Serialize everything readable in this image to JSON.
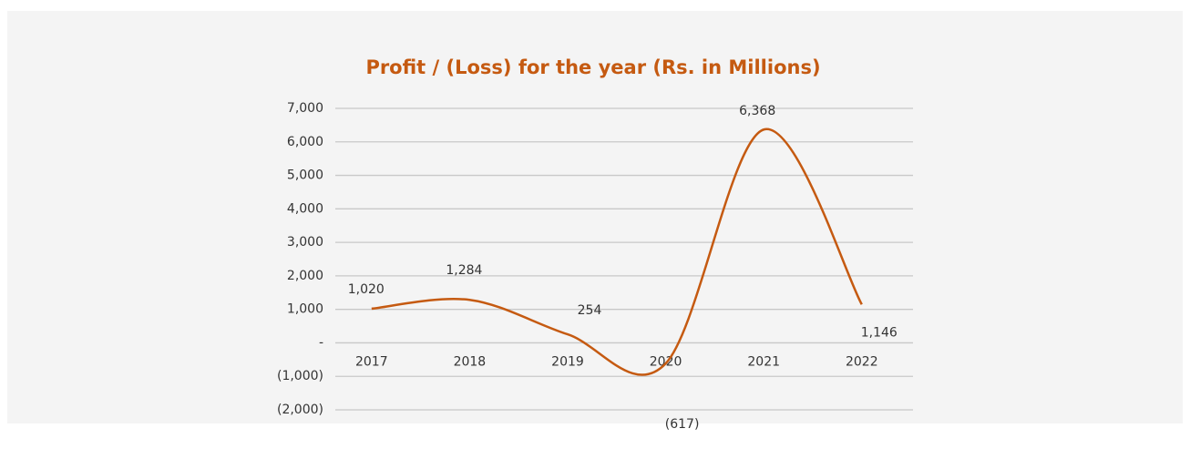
{
  "chart_data": {
    "type": "line",
    "title": "Profit / (Loss) for the year (Rs. in Millions)",
    "categories": [
      "2017",
      "2018",
      "2019",
      "2020",
      "2021",
      "2022"
    ],
    "series": [
      {
        "name": "Profit / (Loss)",
        "color": "#c55a11",
        "values": [
          1020,
          1284,
          254,
          -617,
          6368,
          1146
        ],
        "value_labels": [
          "1,020",
          "1,284",
          "254",
          "(617)",
          "6,368",
          "1,146"
        ]
      }
    ],
    "ylim": [
      -2000,
      7000
    ],
    "yticks": [
      {
        "value": -2000,
        "label": "(2,000)"
      },
      {
        "value": -1000,
        "label": "(1,000)"
      },
      {
        "value": 0,
        "label": "-"
      },
      {
        "value": 1000,
        "label": "1,000"
      },
      {
        "value": 2000,
        "label": "2,000"
      },
      {
        "value": 3000,
        "label": "3,000"
      },
      {
        "value": 4000,
        "label": "4,000"
      },
      {
        "value": 5000,
        "label": "5,000"
      },
      {
        "value": 6000,
        "label": "6,000"
      },
      {
        "value": 7000,
        "label": "7,000"
      }
    ],
    "grid": true
  }
}
